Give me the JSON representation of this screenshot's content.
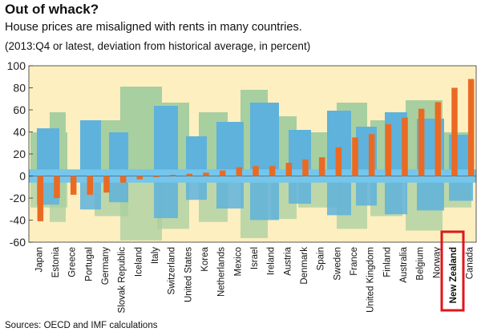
{
  "header": {
    "title": "Out of whack?",
    "subtitle": "House prices are misaligned with rents in many countries.",
    "note": "(2013:Q4 or latest, deviation from historical average, in percent)"
  },
  "source": "Sources: OECD and IMF calculations",
  "colors": {
    "bar": "#ea6a24",
    "plot_bg": "#fdefc0",
    "sky": "#dfe8c6",
    "city_green": "#a8cfa0",
    "city_blue": "#5eb2dc",
    "river": "#74c6ec",
    "highlight": "#e0161b"
  },
  "chart_data": {
    "type": "bar",
    "title": "Out of whack?",
    "subtitle": "House prices are misaligned with rents in many countries.",
    "xlabel": "",
    "ylabel": "",
    "ylim": [
      -60,
      100
    ],
    "yticks": [
      -60,
      -40,
      -20,
      0,
      20,
      40,
      60,
      80,
      100
    ],
    "grid": false,
    "categories": [
      "Japan",
      "Estonia",
      "Greece",
      "Portugal",
      "Germany",
      "Slovak Republic",
      "Iceland",
      "Italy",
      "Switzerland",
      "United States",
      "Korea",
      "Netherlands",
      "Mexico",
      "Israel",
      "Ireland",
      "Austria",
      "Denmark",
      "Spain",
      "Sweden",
      "France",
      "United Kingdom",
      "Finland",
      "Australia",
      "Belgium",
      "Norway",
      "New Zealand",
      "Canada"
    ],
    "values": [
      -41,
      -20,
      -17,
      -17,
      -15,
      -6,
      -3,
      -1,
      1,
      2,
      3,
      5,
      8,
      9,
      9,
      12,
      15,
      17,
      26,
      35,
      38,
      47,
      53,
      61,
      67,
      80,
      88
    ],
    "highlight": "New Zealand"
  }
}
